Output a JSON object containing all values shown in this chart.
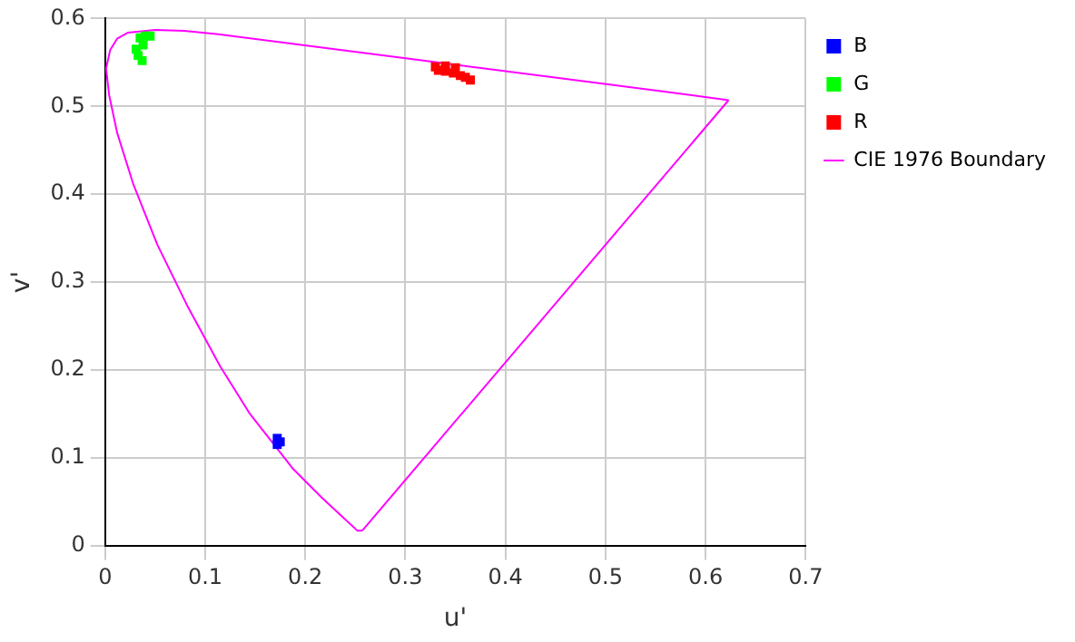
{
  "chart_data": {
    "type": "scatter",
    "xlabel": "u'",
    "ylabel": "v'",
    "xlim": [
      0,
      0.7
    ],
    "ylim": [
      0,
      0.6
    ],
    "xticks": [
      0,
      0.1,
      0.2,
      0.3,
      0.4,
      0.5,
      0.6,
      0.7
    ],
    "yticks": [
      0,
      0.1,
      0.2,
      0.3,
      0.4,
      0.5,
      0.6
    ],
    "grid": true,
    "legend": "top right",
    "series": [
      {
        "name": "B",
        "color": "#0000ff",
        "marker": "square",
        "x": [
          0.172,
          0.175,
          0.172
        ],
        "values": [
          0.122,
          0.118,
          0.115
        ]
      },
      {
        "name": "G",
        "color": "#00ff00",
        "marker": "square",
        "x": [
          0.045,
          0.04,
          0.035,
          0.031,
          0.033,
          0.037,
          0.038
        ],
        "values": [
          0.58,
          0.58,
          0.578,
          0.565,
          0.558,
          0.552,
          0.57
        ]
      },
      {
        "name": "R",
        "color": "#ff0000",
        "marker": "square",
        "x": [
          0.33,
          0.34,
          0.35,
          0.333,
          0.34,
          0.348,
          0.355,
          0.36,
          0.365
        ],
        "values": [
          0.545,
          0.546,
          0.544,
          0.541,
          0.54,
          0.538,
          0.535,
          0.533,
          0.53
        ]
      },
      {
        "name": "CIE 1976 Boundary",
        "type": "line",
        "color": "#ff00ff",
        "marker": "none",
        "line_style": "solid",
        "x": [
          0.257,
          0.252,
          0.235,
          0.216,
          0.188,
          0.144,
          0.115,
          0.083,
          0.052,
          0.028,
          0.012,
          0.004,
          0.001,
          0.005,
          0.012,
          0.023,
          0.05,
          0.079,
          0.113,
          0.203,
          0.332,
          0.469,
          0.557,
          0.623
        ],
        "values": [
          0.017,
          0.017,
          0.035,
          0.055,
          0.087,
          0.151,
          0.204,
          0.271,
          0.343,
          0.412,
          0.47,
          0.513,
          0.543,
          0.564,
          0.577,
          0.584,
          0.587,
          0.586,
          0.582,
          0.569,
          0.55,
          0.53,
          0.517,
          0.507
        ]
      },
      {
        "type": "line",
        "color": "#ff00ff",
        "marker": "none",
        "line_style": "solid",
        "x": [
          0.623,
          0.257
        ],
        "values": [
          0.507,
          0.017
        ]
      }
    ]
  }
}
